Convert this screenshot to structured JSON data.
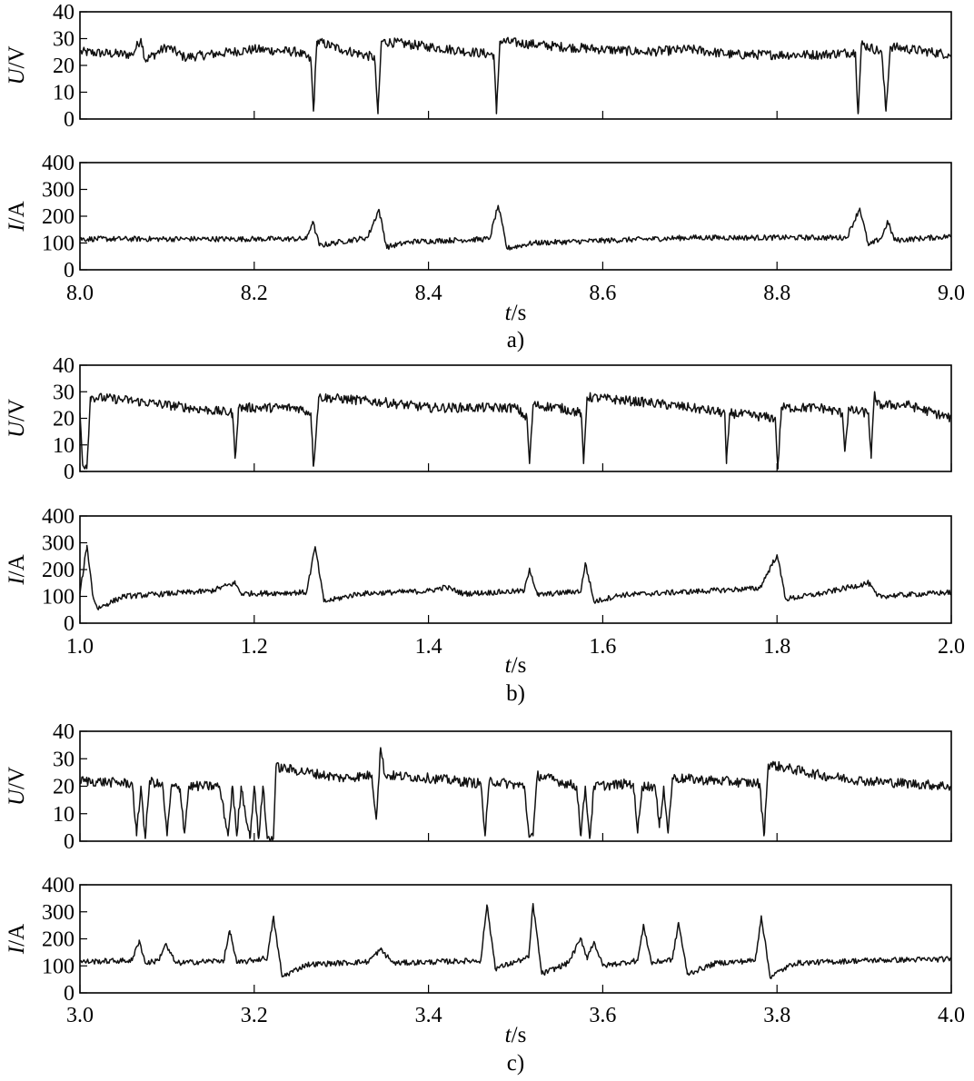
{
  "chart_data": [
    {
      "type": "line",
      "panel": "a)",
      "caption": "a)",
      "xlabel": {
        "var": "t",
        "unit": "/s"
      },
      "xlim": [
        8.0,
        9.0
      ],
      "xticks": [
        "8.0",
        "8.2",
        "8.4",
        "8.6",
        "8.8",
        "9.0"
      ],
      "voltage": {
        "ylabel": {
          "var": "U",
          "unit": "/V"
        },
        "ylim": [
          0,
          40
        ],
        "yticks": [
          "0",
          "10",
          "20",
          "30",
          "40"
        ],
        "base": 25,
        "points": [
          [
            8.0,
            25
          ],
          [
            8.06,
            24
          ],
          [
            8.07,
            30
          ],
          [
            8.075,
            22
          ],
          [
            8.1,
            27
          ],
          [
            8.12,
            23
          ],
          [
            8.2,
            26
          ],
          [
            8.25,
            25
          ],
          [
            8.265,
            22
          ],
          [
            8.268,
            3
          ],
          [
            8.272,
            29
          ],
          [
            8.3,
            26
          ],
          [
            8.338,
            23
          ],
          [
            8.342,
            2
          ],
          [
            8.346,
            29
          ],
          [
            8.4,
            27
          ],
          [
            8.45,
            25
          ],
          [
            8.475,
            24
          ],
          [
            8.478,
            2
          ],
          [
            8.482,
            29
          ],
          [
            8.55,
            27
          ],
          [
            8.6,
            26
          ],
          [
            8.65,
            25
          ],
          [
            8.7,
            26
          ],
          [
            8.75,
            24
          ],
          [
            8.8,
            24
          ],
          [
            8.85,
            24
          ],
          [
            8.89,
            25
          ],
          [
            8.893,
            2
          ],
          [
            8.897,
            28
          ],
          [
            8.92,
            25
          ],
          [
            8.925,
            3
          ],
          [
            8.93,
            27
          ],
          [
            9.0,
            24
          ]
        ]
      },
      "current": {
        "ylabel": {
          "var": "I",
          "unit": "/A"
        },
        "ylim": [
          0,
          400
        ],
        "yticks": [
          "0",
          "100",
          "200",
          "300",
          "400"
        ],
        "base": 115,
        "points": [
          [
            8.0,
            115
          ],
          [
            8.26,
            115
          ],
          [
            8.267,
            180
          ],
          [
            8.275,
            90
          ],
          [
            8.3,
            105
          ],
          [
            8.33,
            120
          ],
          [
            8.343,
            225
          ],
          [
            8.352,
            85
          ],
          [
            8.38,
            105
          ],
          [
            8.47,
            115
          ],
          [
            8.48,
            240
          ],
          [
            8.49,
            80
          ],
          [
            8.52,
            100
          ],
          [
            8.7,
            120
          ],
          [
            8.88,
            120
          ],
          [
            8.895,
            230
          ],
          [
            8.905,
            90
          ],
          [
            8.92,
            120
          ],
          [
            8.927,
            180
          ],
          [
            8.935,
            110
          ],
          [
            9.0,
            125
          ]
        ]
      }
    },
    {
      "type": "line",
      "panel": "b)",
      "caption": "b)",
      "xlabel": {
        "var": "t",
        "unit": "/s"
      },
      "xlim": [
        1.0,
        2.0
      ],
      "xticks": [
        "1.0",
        "1.2",
        "1.4",
        "1.6",
        "1.8",
        "2.0"
      ],
      "voltage": {
        "ylabel": {
          "var": "U",
          "unit": "/V"
        },
        "ylim": [
          0,
          40
        ],
        "yticks": [
          "0",
          "10",
          "20",
          "30",
          "40"
        ],
        "base": 24,
        "points": [
          [
            1.0,
            22
          ],
          [
            1.003,
            3
          ],
          [
            1.008,
            2
          ],
          [
            1.012,
            28
          ],
          [
            1.05,
            27
          ],
          [
            1.15,
            23
          ],
          [
            1.175,
            22
          ],
          [
            1.178,
            5
          ],
          [
            1.182,
            24
          ],
          [
            1.25,
            24
          ],
          [
            1.265,
            22
          ],
          [
            1.268,
            2
          ],
          [
            1.274,
            28
          ],
          [
            1.35,
            26
          ],
          [
            1.4,
            24
          ],
          [
            1.45,
            24
          ],
          [
            1.5,
            24
          ],
          [
            1.513,
            20
          ],
          [
            1.516,
            3
          ],
          [
            1.52,
            25
          ],
          [
            1.55,
            24
          ],
          [
            1.575,
            22
          ],
          [
            1.578,
            3
          ],
          [
            1.582,
            28
          ],
          [
            1.65,
            26
          ],
          [
            1.7,
            24
          ],
          [
            1.74,
            22
          ],
          [
            1.742,
            3
          ],
          [
            1.746,
            22
          ],
          [
            1.798,
            20
          ],
          [
            1.801,
            1
          ],
          [
            1.805,
            24
          ],
          [
            1.85,
            24
          ],
          [
            1.875,
            22
          ],
          [
            1.878,
            8
          ],
          [
            1.882,
            23
          ],
          [
            1.905,
            22
          ],
          [
            1.908,
            5
          ],
          [
            1.912,
            30
          ],
          [
            1.915,
            25
          ],
          [
            1.95,
            25
          ],
          [
            2.0,
            20
          ]
        ]
      },
      "current": {
        "ylabel": {
          "var": "I",
          "unit": "/A"
        },
        "ylim": [
          0,
          400
        ],
        "yticks": [
          "0",
          "100",
          "200",
          "300",
          "400"
        ],
        "base": 115,
        "points": [
          [
            1.0,
            110
          ],
          [
            1.008,
            290
          ],
          [
            1.015,
            100
          ],
          [
            1.02,
            55
          ],
          [
            1.05,
            100
          ],
          [
            1.15,
            120
          ],
          [
            1.178,
            150
          ],
          [
            1.185,
            110
          ],
          [
            1.26,
            115
          ],
          [
            1.27,
            285
          ],
          [
            1.28,
            80
          ],
          [
            1.32,
            110
          ],
          [
            1.4,
            120
          ],
          [
            1.42,
            135
          ],
          [
            1.44,
            110
          ],
          [
            1.51,
            120
          ],
          [
            1.516,
            205
          ],
          [
            1.525,
            105
          ],
          [
            1.575,
            120
          ],
          [
            1.58,
            225
          ],
          [
            1.59,
            80
          ],
          [
            1.62,
            105
          ],
          [
            1.78,
            130
          ],
          [
            1.8,
            255
          ],
          [
            1.81,
            90
          ],
          [
            1.85,
            110
          ],
          [
            1.905,
            150
          ],
          [
            1.915,
            100
          ],
          [
            2.0,
            115
          ]
        ]
      }
    },
    {
      "type": "line",
      "panel": "c)",
      "caption": "c)",
      "xlabel": {
        "var": "t",
        "unit": "/s"
      },
      "xlim": [
        3.0,
        4.0
      ],
      "xticks": [
        "3.0",
        "3.2",
        "3.4",
        "3.6",
        "3.8",
        "4.0"
      ],
      "voltage": {
        "ylabel": {
          "var": "U",
          "unit": "/V"
        },
        "ylim": [
          0,
          40
        ],
        "yticks": [
          "0",
          "10",
          "20",
          "30",
          "40"
        ],
        "base": 21,
        "points": [
          [
            3.0,
            22
          ],
          [
            3.06,
            21
          ],
          [
            3.065,
            2
          ],
          [
            3.07,
            20
          ],
          [
            3.075,
            1
          ],
          [
            3.08,
            22
          ],
          [
            3.095,
            20
          ],
          [
            3.1,
            2
          ],
          [
            3.105,
            20
          ],
          [
            3.115,
            19
          ],
          [
            3.12,
            3
          ],
          [
            3.125,
            20
          ],
          [
            3.16,
            20
          ],
          [
            3.17,
            2
          ],
          [
            3.175,
            20
          ],
          [
            3.18,
            2
          ],
          [
            3.185,
            20
          ],
          [
            3.195,
            1
          ],
          [
            3.2,
            20
          ],
          [
            3.205,
            1
          ],
          [
            3.21,
            20
          ],
          [
            3.215,
            1
          ],
          [
            3.222,
            1
          ],
          [
            3.225,
            27
          ],
          [
            3.3,
            23
          ],
          [
            3.335,
            24
          ],
          [
            3.34,
            8
          ],
          [
            3.345,
            34
          ],
          [
            3.35,
            24
          ],
          [
            3.4,
            23
          ],
          [
            3.46,
            21
          ],
          [
            3.465,
            2
          ],
          [
            3.47,
            22
          ],
          [
            3.51,
            20
          ],
          [
            3.515,
            3
          ],
          [
            3.52,
            2
          ],
          [
            3.525,
            24
          ],
          [
            3.57,
            20
          ],
          [
            3.575,
            2
          ],
          [
            3.58,
            20
          ],
          [
            3.585,
            1
          ],
          [
            3.59,
            20
          ],
          [
            3.635,
            21
          ],
          [
            3.64,
            3
          ],
          [
            3.645,
            20
          ],
          [
            3.66,
            20
          ],
          [
            3.665,
            5
          ],
          [
            3.67,
            20
          ],
          [
            3.675,
            3
          ],
          [
            3.68,
            23
          ],
          [
            3.78,
            21
          ],
          [
            3.785,
            2
          ],
          [
            3.79,
            28
          ],
          [
            3.85,
            24
          ],
          [
            3.9,
            22
          ],
          [
            4.0,
            20
          ]
        ]
      },
      "current": {
        "ylabel": {
          "var": "I",
          "unit": "/A"
        },
        "ylim": [
          0,
          400
        ],
        "yticks": [
          "0",
          "100",
          "200",
          "300",
          "400"
        ],
        "base": 115,
        "points": [
          [
            3.0,
            115
          ],
          [
            3.06,
            120
          ],
          [
            3.068,
            195
          ],
          [
            3.075,
            110
          ],
          [
            3.09,
            120
          ],
          [
            3.098,
            180
          ],
          [
            3.11,
            110
          ],
          [
            3.165,
            120
          ],
          [
            3.172,
            230
          ],
          [
            3.18,
            110
          ],
          [
            3.215,
            130
          ],
          [
            3.222,
            280
          ],
          [
            3.232,
            60
          ],
          [
            3.26,
            105
          ],
          [
            3.33,
            115
          ],
          [
            3.345,
            160
          ],
          [
            3.36,
            110
          ],
          [
            3.46,
            120
          ],
          [
            3.467,
            325
          ],
          [
            3.477,
            90
          ],
          [
            3.5,
            115
          ],
          [
            3.515,
            130
          ],
          [
            3.52,
            330
          ],
          [
            3.53,
            70
          ],
          [
            3.56,
            110
          ],
          [
            3.575,
            200
          ],
          [
            3.582,
            130
          ],
          [
            3.59,
            190
          ],
          [
            3.6,
            100
          ],
          [
            3.64,
            120
          ],
          [
            3.647,
            250
          ],
          [
            3.656,
            110
          ],
          [
            3.68,
            125
          ],
          [
            3.687,
            260
          ],
          [
            3.697,
            70
          ],
          [
            3.73,
            110
          ],
          [
            3.775,
            120
          ],
          [
            3.782,
            285
          ],
          [
            3.792,
            60
          ],
          [
            3.82,
            110
          ],
          [
            3.9,
            120
          ],
          [
            4.0,
            125
          ]
        ]
      }
    }
  ]
}
